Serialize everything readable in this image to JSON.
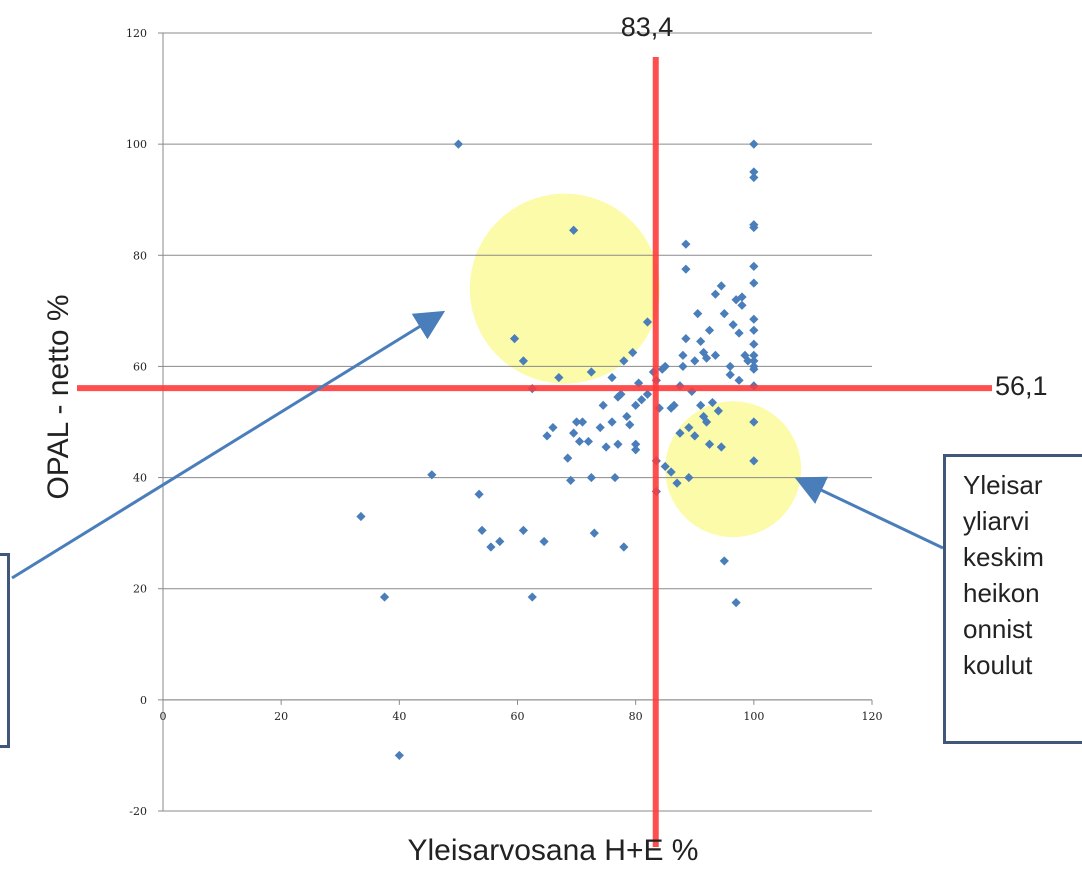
{
  "chart_data": {
    "type": "scatter",
    "xlabel": "Yleisarvosana H+E %",
    "ylabel": "OPAL - netto %",
    "xlim": [
      0,
      120
    ],
    "ylim": [
      -20,
      120
    ],
    "x_ticks": [
      "0",
      "20",
      "40",
      "60",
      "80",
      "100",
      "120"
    ],
    "y_ticks": [
      "-20",
      "0",
      "20",
      "40",
      "60",
      "80",
      "100",
      "120"
    ],
    "grid": "horizontal",
    "marker": "diamond",
    "marker_color": "#4a7ebb",
    "reference_lines": [
      {
        "axis": "x",
        "value": 83.4,
        "label": "83,4",
        "color": "#ff3b3b"
      },
      {
        "axis": "y",
        "value": 56.1,
        "label": "56,1",
        "color": "#ff3b3b"
      }
    ],
    "highlights": [
      {
        "cx": 68,
        "cy": 74,
        "color": "#fbfa9a"
      },
      {
        "cx": 96.5,
        "cy": 41.5,
        "color": "#fbfa9a"
      }
    ],
    "points": [
      [
        50,
        100
      ],
      [
        33.5,
        33
      ],
      [
        37.5,
        18.5
      ],
      [
        40,
        -10
      ],
      [
        45.5,
        40.5
      ],
      [
        53.5,
        37
      ],
      [
        54,
        30.5
      ],
      [
        55.5,
        27.5
      ],
      [
        57,
        28.5
      ],
      [
        61,
        30.5
      ],
      [
        62.5,
        18.5
      ],
      [
        64.5,
        28.5
      ],
      [
        59.5,
        65
      ],
      [
        61,
        61
      ],
      [
        62.5,
        56
      ],
      [
        65,
        47.5
      ],
      [
        66,
        49
      ],
      [
        67,
        58
      ],
      [
        68.5,
        43.5
      ],
      [
        69,
        39.5
      ],
      [
        69.5,
        84.5
      ],
      [
        69.5,
        48
      ],
      [
        70,
        50
      ],
      [
        70.5,
        46.5
      ],
      [
        71,
        50
      ],
      [
        72,
        46.5
      ],
      [
        72.5,
        59
      ],
      [
        72.5,
        40
      ],
      [
        73,
        30
      ],
      [
        74,
        49
      ],
      [
        74.5,
        53
      ],
      [
        75,
        45.5
      ],
      [
        76,
        58
      ],
      [
        76,
        50
      ],
      [
        76.5,
        40
      ],
      [
        77,
        54.5
      ],
      [
        77.5,
        55
      ],
      [
        77,
        46
      ],
      [
        78,
        61
      ],
      [
        78.5,
        51
      ],
      [
        78,
        27.5
      ],
      [
        79,
        49.5
      ],
      [
        79.5,
        62.5
      ],
      [
        80,
        46
      ],
      [
        80,
        45
      ],
      [
        80,
        53
      ],
      [
        80.5,
        57
      ],
      [
        81,
        54
      ],
      [
        82,
        68
      ],
      [
        82,
        55
      ],
      [
        83,
        59
      ],
      [
        83.5,
        57.5
      ],
      [
        84,
        52.5
      ],
      [
        83.5,
        43
      ],
      [
        83.5,
        37.5
      ],
      [
        84.5,
        59.5
      ],
      [
        85,
        42
      ],
      [
        85,
        60
      ],
      [
        86,
        52.5
      ],
      [
        86,
        41
      ],
      [
        86.5,
        53
      ],
      [
        87,
        39
      ],
      [
        87.5,
        56.5
      ],
      [
        87.5,
        48
      ],
      [
        88,
        62
      ],
      [
        88,
        60
      ],
      [
        88.5,
        65
      ],
      [
        88.5,
        82
      ],
      [
        88.5,
        77.5
      ],
      [
        89,
        49
      ],
      [
        89,
        40
      ],
      [
        89.5,
        55.5
      ],
      [
        90,
        47.5
      ],
      [
        90,
        61
      ],
      [
        90.5,
        69.5
      ],
      [
        91,
        53
      ],
      [
        91,
        64.5
      ],
      [
        91.5,
        51
      ],
      [
        91.5,
        62.5
      ],
      [
        92,
        50
      ],
      [
        92,
        61.5
      ],
      [
        92.5,
        66.5
      ],
      [
        92.5,
        46
      ],
      [
        93,
        53.5
      ],
      [
        93.5,
        62
      ],
      [
        93.5,
        73
      ],
      [
        94,
        52
      ],
      [
        94.5,
        74.5
      ],
      [
        94.5,
        45.5
      ],
      [
        95,
        69.5
      ],
      [
        95,
        25
      ],
      [
        96,
        60
      ],
      [
        96,
        58.5
      ],
      [
        96.5,
        67.5
      ],
      [
        97,
        72
      ],
      [
        97,
        17.5
      ],
      [
        97.5,
        57.5
      ],
      [
        97.5,
        66
      ],
      [
        98,
        71
      ],
      [
        98,
        72.5
      ],
      [
        98.5,
        62
      ],
      [
        99,
        61
      ],
      [
        100,
        100
      ],
      [
        100,
        95
      ],
      [
        100,
        94
      ],
      [
        100,
        85.5
      ],
      [
        100,
        85
      ],
      [
        100,
        78
      ],
      [
        100,
        75
      ],
      [
        100,
        68.5
      ],
      [
        100,
        66.5
      ],
      [
        100,
        64
      ],
      [
        100,
        62
      ],
      [
        100,
        61
      ],
      [
        100,
        59.5
      ],
      [
        100,
        56.5
      ],
      [
        100,
        50
      ],
      [
        100,
        43
      ],
      [
        100,
        60
      ]
    ]
  },
  "annotation": {
    "lines": [
      "Yleisar",
      "yliarvi",
      "keskim",
      "heikon",
      "onnist",
      "koulut"
    ]
  }
}
